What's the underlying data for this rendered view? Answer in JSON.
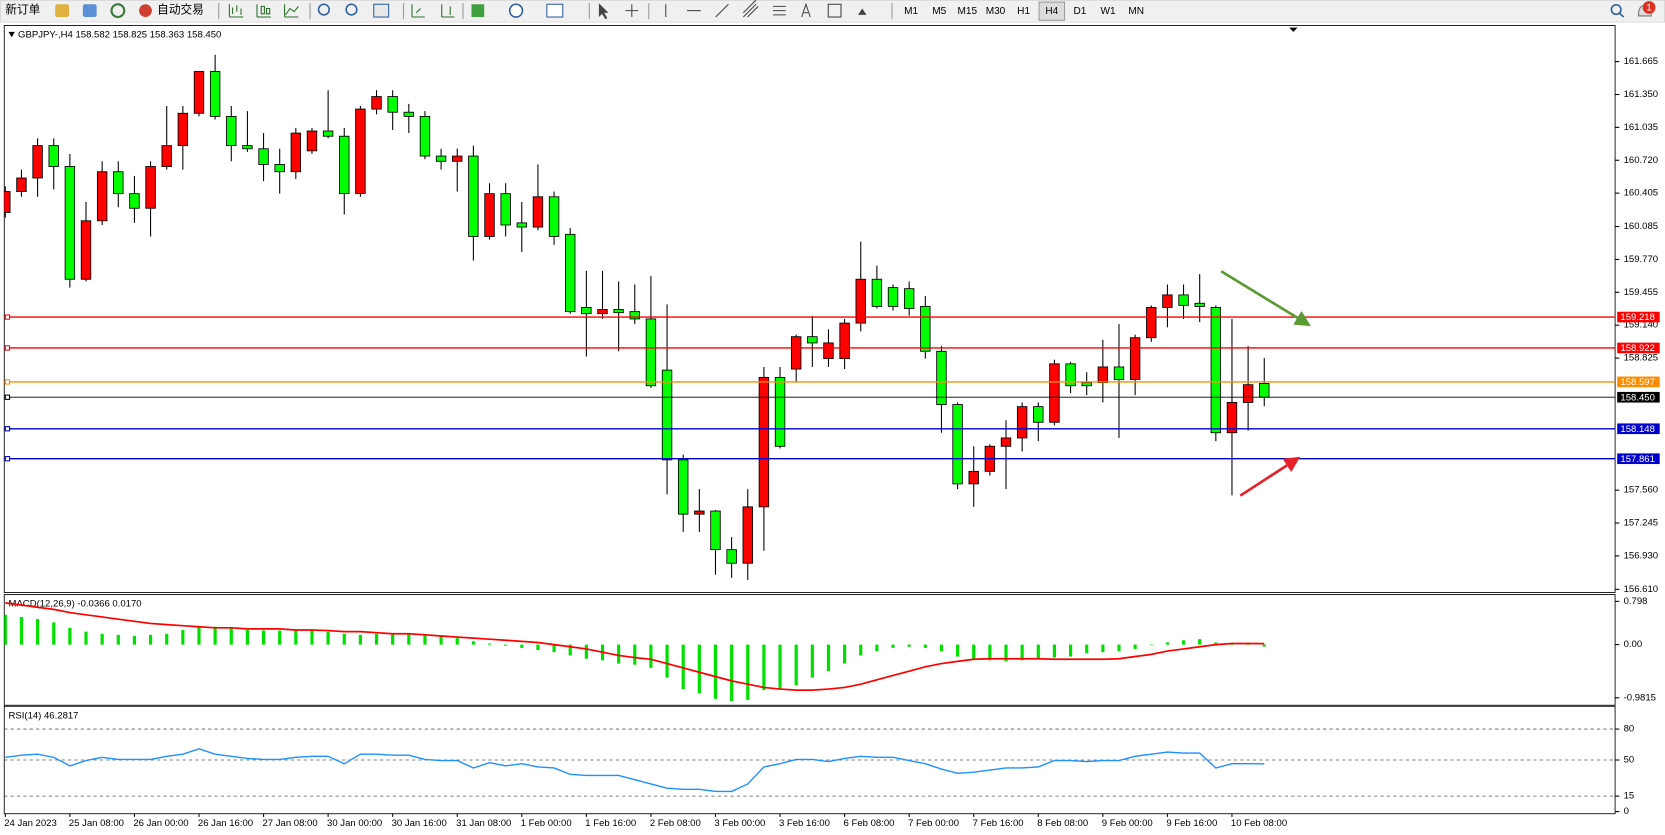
{
  "toolbar": {
    "new_order": "新订单",
    "auto_trading": "自动交易",
    "timeframes": [
      "M1",
      "M5",
      "M15",
      "M30",
      "H1",
      "H4",
      "D1",
      "W1",
      "MN"
    ],
    "active_timeframe": "H4",
    "notifications": "1"
  },
  "chart_data": [
    {
      "type": "candlestick",
      "title": "GBPJPY-,H4 158.582 158.825 158.363 158.450",
      "categories": [
        "24 Jan 2023",
        null,
        null,
        null,
        "25 Jan 08:00",
        null,
        null,
        null,
        "26 Jan 00:00",
        null,
        null,
        null,
        "26 Jan 16:00",
        null,
        null,
        null,
        "27 Jan 08:00",
        null,
        null,
        null,
        "30 Jan 00:00",
        null,
        null,
        null,
        "30 Jan 16:00",
        null,
        null,
        null,
        "31 Jan 08:00",
        null,
        null,
        null,
        "1 Feb 00:00",
        null,
        null,
        null,
        "1 Feb 16:00",
        null,
        null,
        null,
        "2 Feb 08:00",
        null,
        null,
        null,
        "3 Feb 00:00",
        null,
        null,
        null,
        "3 Feb 16:00",
        null,
        null,
        null,
        "6 Feb 08:00",
        null,
        null,
        null,
        "7 Feb 00:00",
        null,
        null,
        null,
        "7 Feb 16:00",
        null,
        null,
        null,
        "8 Feb 08:00",
        null,
        null,
        null,
        "9 Feb 00:00",
        null,
        null,
        null,
        "9 Feb 16:00",
        null,
        null,
        null,
        "10 Feb 08:00",
        null,
        null
      ],
      "open": [
        160.22,
        160.42,
        160.55,
        160.86,
        160.66,
        159.58,
        160.14,
        160.61,
        160.4,
        160.26,
        160.66,
        160.86,
        161.17,
        161.57,
        161.14,
        160.86,
        160.83,
        160.68,
        160.61,
        160.81,
        161.0,
        160.95,
        160.4,
        161.21,
        161.33,
        161.18,
        161.14,
        160.76,
        160.71,
        160.76,
        159.99,
        160.4,
        160.12,
        160.08,
        160.37,
        160.01,
        159.31,
        159.25,
        159.29,
        159.27,
        159.2,
        158.71,
        157.85,
        157.33,
        157.36,
        156.99,
        156.86,
        157.4,
        158.64,
        158.72,
        159.03,
        158.82,
        158.82,
        159.16,
        159.58,
        159.5,
        159.49,
        159.32,
        158.89,
        158.38,
        157.62,
        157.74,
        157.98,
        158.06,
        158.36,
        158.21,
        158.77,
        158.59,
        158.59,
        158.74,
        158.62,
        159.02,
        159.31,
        159.43,
        159.35,
        159.31,
        158.11,
        158.4,
        158.582
      ],
      "high": [
        160.47,
        160.63,
        160.93,
        160.93,
        160.78,
        160.32,
        160.71,
        160.71,
        160.57,
        160.71,
        161.24,
        161.24,
        161.57,
        161.73,
        161.24,
        161.19,
        160.98,
        160.83,
        161.03,
        161.03,
        161.39,
        161.03,
        161.24,
        161.39,
        161.39,
        161.26,
        161.19,
        160.83,
        160.83,
        160.86,
        160.5,
        160.5,
        160.32,
        160.68,
        160.42,
        160.07,
        159.66,
        159.66,
        159.56,
        159.53,
        159.61,
        159.34,
        157.9,
        157.57,
        157.37,
        157.11,
        157.57,
        158.74,
        158.74,
        159.05,
        159.23,
        159.1,
        159.2,
        159.94,
        159.71,
        159.53,
        159.56,
        159.42,
        158.94,
        158.4,
        157.98,
        158.0,
        158.23,
        158.4,
        158.4,
        158.81,
        158.79,
        158.69,
        159.0,
        159.15,
        159.05,
        159.33,
        159.53,
        159.53,
        159.63,
        159.33,
        159.2,
        158.94,
        158.825
      ],
      "low": [
        160.17,
        160.37,
        160.37,
        160.44,
        159.5,
        159.56,
        160.1,
        160.27,
        160.12,
        159.99,
        160.63,
        160.63,
        161.14,
        161.11,
        160.71,
        160.8,
        160.52,
        160.4,
        160.54,
        160.78,
        160.93,
        160.2,
        160.37,
        161.16,
        161.01,
        160.98,
        160.73,
        160.63,
        160.42,
        159.76,
        159.96,
        159.99,
        159.84,
        160.05,
        159.91,
        159.25,
        158.84,
        159.2,
        158.89,
        159.15,
        158.54,
        157.52,
        157.16,
        157.16,
        156.75,
        156.72,
        156.7,
        156.98,
        157.96,
        158.59,
        158.74,
        158.74,
        158.72,
        159.08,
        159.3,
        159.28,
        159.23,
        158.82,
        158.11,
        157.57,
        157.4,
        157.7,
        157.57,
        157.93,
        158.03,
        158.18,
        158.49,
        158.47,
        158.4,
        158.06,
        158.47,
        158.98,
        159.12,
        159.2,
        159.17,
        158.03,
        157.51,
        158.13,
        158.363
      ],
      "close": [
        160.42,
        160.55,
        160.86,
        160.66,
        159.58,
        160.14,
        160.61,
        160.4,
        160.26,
        160.66,
        160.86,
        161.17,
        161.57,
        161.14,
        160.86,
        160.83,
        160.68,
        160.61,
        160.98,
        161.0,
        160.95,
        160.4,
        161.21,
        161.33,
        161.18,
        161.14,
        160.76,
        160.71,
        160.76,
        159.99,
        160.4,
        160.1,
        160.08,
        160.37,
        159.99,
        159.27,
        159.25,
        159.29,
        159.26,
        159.2,
        158.56,
        157.85,
        157.33,
        157.36,
        156.99,
        156.86,
        157.4,
        158.64,
        157.98,
        159.03,
        158.97,
        158.97,
        159.16,
        159.58,
        159.32,
        159.32,
        159.3,
        158.89,
        158.38,
        157.62,
        157.74,
        157.98,
        158.06,
        158.36,
        158.21,
        158.77,
        158.56,
        158.56,
        158.74,
        158.62,
        159.02,
        159.31,
        159.43,
        159.33,
        159.32,
        158.11,
        158.4,
        158.57,
        158.45
      ],
      "up_color": "#ff0000",
      "down_color": "#00ff00",
      "ylim": [
        156.59,
        161.99
      ],
      "yticks": [
        161.665,
        {
          "value": 161.35,
          "label": "161.350"
        },
        161.035,
        {
          "value": 160.72,
          "label": "160.720"
        },
        160.405,
        160.085,
        {
          "value": 159.77,
          "label": "159.770"
        },
        159.455,
        {
          "value": 159.14,
          "label": "159.140"
        },
        158.825,
        {
          "value": 157.56,
          "label": "157.560"
        },
        157.245,
        {
          "value": 156.93,
          "label": "156.930"
        },
        {
          "value": 156.61,
          "label": "156.610"
        }
      ],
      "levels": [
        {
          "value": 159.218,
          "label": "159.218",
          "color": "#ff0000"
        },
        {
          "value": 158.922,
          "label": "158.922",
          "color": "#ff0000"
        },
        {
          "value": 158.597,
          "label": "158.597",
          "color": "#ff8c00"
        },
        {
          "value": 158.45,
          "label": "158.450",
          "color": "#000000"
        },
        {
          "value": 158.148,
          "label": "158.148",
          "color": "#0000cd"
        },
        {
          "value": 157.861,
          "label": "157.861",
          "color": "#0000cd"
        }
      ]
    },
    {
      "type": "macd",
      "title": "MACD(12,26,9) -0.0366 0.0170",
      "histogram": [
        0.55,
        0.51,
        0.47,
        0.41,
        0.31,
        0.24,
        0.2,
        0.18,
        0.16,
        0.18,
        0.2,
        0.27,
        0.33,
        0.33,
        0.31,
        0.27,
        0.26,
        0.26,
        0.27,
        0.27,
        0.24,
        0.2,
        0.18,
        0.2,
        0.2,
        0.2,
        0.18,
        0.16,
        0.12,
        0.06,
        0.02,
        -0.02,
        -0.06,
        -0.1,
        -0.14,
        -0.2,
        -0.26,
        -0.29,
        -0.35,
        -0.37,
        -0.43,
        -0.61,
        -0.82,
        -0.9,
        -1.0,
        -1.04,
        -1.02,
        -0.84,
        -0.82,
        -0.75,
        -0.61,
        -0.49,
        -0.35,
        -0.2,
        -0.12,
        -0.06,
        -0.04,
        -0.06,
        -0.12,
        -0.22,
        -0.27,
        -0.29,
        -0.31,
        -0.29,
        -0.27,
        -0.24,
        -0.22,
        -0.16,
        -0.14,
        -0.12,
        -0.08,
        0.0,
        0.04,
        0.08,
        0.1,
        0.04,
        0.0,
        0.0,
        -0.0366
      ],
      "signal": [
        0.77,
        0.73,
        0.69,
        0.65,
        0.59,
        0.55,
        0.51,
        0.47,
        0.43,
        0.39,
        0.37,
        0.35,
        0.33,
        0.31,
        0.31,
        0.29,
        0.29,
        0.29,
        0.27,
        0.27,
        0.26,
        0.24,
        0.24,
        0.22,
        0.2,
        0.2,
        0.18,
        0.16,
        0.14,
        0.12,
        0.1,
        0.08,
        0.06,
        0.04,
        0.0,
        -0.04,
        -0.08,
        -0.14,
        -0.2,
        -0.24,
        -0.27,
        -0.35,
        -0.43,
        -0.51,
        -0.59,
        -0.67,
        -0.73,
        -0.79,
        -0.82,
        -0.84,
        -0.84,
        -0.82,
        -0.79,
        -0.73,
        -0.65,
        -0.57,
        -0.49,
        -0.41,
        -0.35,
        -0.31,
        -0.27,
        -0.26,
        -0.26,
        -0.26,
        -0.26,
        -0.27,
        -0.27,
        -0.27,
        -0.27,
        -0.26,
        -0.22,
        -0.18,
        -0.12,
        -0.08,
        -0.04,
        0.0,
        0.02,
        0.02,
        0.017
      ],
      "histogram_color": "#00e000",
      "signal_color": "#ff0000",
      "ylim": [
        -1.099,
        0.903
      ],
      "yticks": [
        0.798,
        {
          "value": 0,
          "label": "0.00"
        },
        -0.9815
      ]
    },
    {
      "type": "rsi",
      "title": "RSI(14) 46.2817",
      "values": [
        52.6,
        54.6,
        55.7,
        52.6,
        44.3,
        49.5,
        52.6,
        50.5,
        50.5,
        50.5,
        53.6,
        55.7,
        60.8,
        55.7,
        53.6,
        51.5,
        50.5,
        50.5,
        52.6,
        53.6,
        53.6,
        46.4,
        55.7,
        55.7,
        54.6,
        54.6,
        50.5,
        49.5,
        49.5,
        42.3,
        47.4,
        44.3,
        46.4,
        43.3,
        42.3,
        36.1,
        35.1,
        35.1,
        35.1,
        30.9,
        26.8,
        22.7,
        21.6,
        21.6,
        19.6,
        19.6,
        26.8,
        43.3,
        46.4,
        50.5,
        50.5,
        48.5,
        51.5,
        53.6,
        52.6,
        52.6,
        49.5,
        46.4,
        41.2,
        37.1,
        38.1,
        40.2,
        42.3,
        42.3,
        43.3,
        49.5,
        49.5,
        48.5,
        49.5,
        49.5,
        53.6,
        55.7,
        57.7,
        56.7,
        56.7,
        42.3,
        46.4,
        46.4,
        46.2817
      ],
      "color": "#1e90ff",
      "ylim": [
        0,
        100
      ],
      "yticks": [
        80,
        50,
        15,
        0
      ],
      "levels": [
        80,
        50,
        15
      ]
    }
  ]
}
